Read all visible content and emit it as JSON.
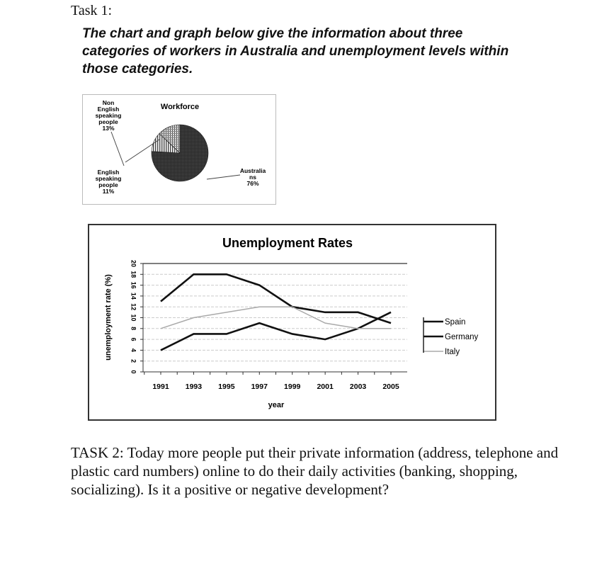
{
  "task1": {
    "label": "Task 1:",
    "heading": "The chart and graph below give the information about three categories of workers in Australia and unemployment levels within those categories."
  },
  "pie": {
    "title": "Workforce",
    "slices": [
      {
        "label_lines": [
          "Australia",
          "ns",
          "76%"
        ],
        "value": 76,
        "pattern": "dark"
      },
      {
        "label_lines": [
          "English",
          "speaking",
          "people",
          "11%"
        ],
        "value": 11,
        "pattern": "vertical-stripes"
      },
      {
        "label_lines": [
          "Non",
          "English",
          "speaking",
          "people",
          "13%"
        ],
        "value": 13,
        "pattern": "hatched"
      }
    ]
  },
  "chart_data": {
    "type": "line",
    "title": "Unemployment Rates",
    "xlabel": "year",
    "ylabel": "unemployment rate (%)",
    "x": [
      1991,
      1993,
      1995,
      1997,
      1999,
      2001,
      2003,
      2005
    ],
    "ylim": [
      0,
      20
    ],
    "yticks": [
      0,
      2,
      4,
      6,
      8,
      10,
      12,
      14,
      16,
      18,
      20
    ],
    "grid": true,
    "legend": "right",
    "series": [
      {
        "name": "Spain",
        "color": "#111111",
        "values": [
          13,
          18,
          18,
          16,
          12,
          11,
          11,
          9
        ]
      },
      {
        "name": "Germany",
        "color": "#111111",
        "values": [
          4,
          7,
          7,
          9,
          7,
          6,
          8,
          11
        ]
      },
      {
        "name": "Italy",
        "color": "#aaaaaa",
        "values": [
          8,
          10,
          11,
          12,
          12,
          9,
          8,
          8
        ]
      }
    ]
  },
  "task2": {
    "text": "TASK 2: Today more people put their private information (address, telephone and plastic card numbers) online to do their daily activities (banking, shopping, socializing). Is it a positive or negative development?"
  }
}
